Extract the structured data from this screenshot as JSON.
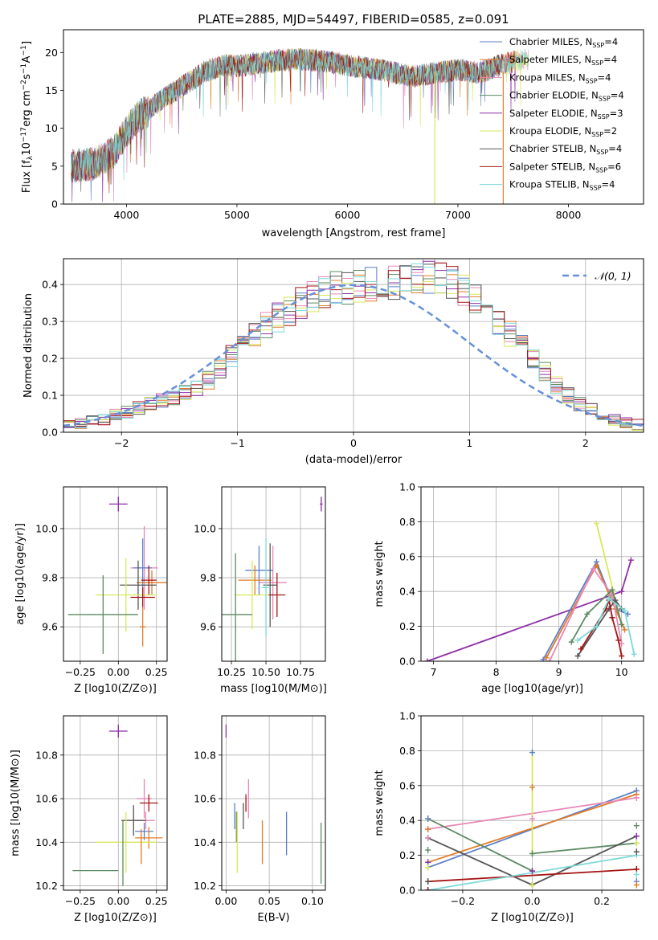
{
  "figure_title": "PLATE=2885, MJD=54497, FIBERID=0585, z=0.091",
  "colors": {
    "chabrier_miles": "#5b7fc9",
    "salpeter_miles": "#e07b28",
    "kroupa_miles": "#e887b8",
    "chabrier_elodie": "#5d8a63",
    "salpeter_elodie": "#8e2ea6",
    "kroupa_elodie": "#d9e85a",
    "chabrier_stelib": "#555555",
    "salpeter_stelib": "#a51515",
    "kroupa_stelib": "#7dd9d8",
    "gaussian": "#6690d8",
    "grid": "#b0b0b0"
  },
  "chart_data": [
    {
      "id": "spectrum",
      "type": "line",
      "title": "PLATE=2885, MJD=54497, FIBERID=0585, z=0.091",
      "xlabel": "wavelength [Angstrom, rest frame]",
      "ylabel": "Flux [f_λ 10^-17 erg cm^-2 s^-1 A^-1]",
      "xlim": [
        3430,
        8680
      ],
      "ylim": [
        0,
        23
      ],
      "xticks": [
        4000,
        5000,
        6000,
        7000,
        8000
      ],
      "yticks": [
        0,
        5,
        10,
        15,
        20
      ],
      "grid": false,
      "legend_position": "upper right",
      "series": [
        {
          "name": "Chabrier MILES, N_SSP=4",
          "color": "#5b7fc9"
        },
        {
          "name": "Salpeter MILES, N_SSP=4",
          "color": "#e07b28"
        },
        {
          "name": "Kroupa MILES, N_SSP=4",
          "color": "#e887b8"
        },
        {
          "name": "Chabrier ELODIE, N_SSP=4",
          "color": "#5d8a63"
        },
        {
          "name": "Salpeter ELODIE, N_SSP=3",
          "color": "#8e2ea6"
        },
        {
          "name": "Kroupa ELODIE, N_SSP=2",
          "color": "#d9e85a"
        },
        {
          "name": "Chabrier STELIB, N_SSP=4",
          "color": "#555555"
        },
        {
          "name": "Salpeter STELIB, N_SSP=6",
          "color": "#a51515"
        },
        {
          "name": "Kroupa STELIB, N_SSP=4",
          "color": "#7dd9d8"
        }
      ],
      "continuum": {
        "x": [
          3500,
          3700,
          3800,
          3900,
          4000,
          4100,
          4200,
          4300,
          4400,
          4500,
          4600,
          4700,
          4800,
          4900,
          5000,
          5200,
          5400,
          5600,
          5800,
          5900,
          6000,
          6200,
          6400,
          6600,
          6800,
          7000,
          7200,
          7400,
          7600,
          7800
        ],
        "y": [
          5.0,
          5.3,
          6.0,
          7.2,
          9.5,
          11.5,
          12.3,
          13.6,
          14.5,
          15.5,
          16.4,
          17.4,
          17.9,
          18.4,
          18.2,
          18.6,
          19.0,
          19.1,
          18.8,
          18.6,
          18.3,
          17.9,
          17.4,
          16.8,
          17.3,
          17.7,
          17.3,
          18.5,
          19.0,
          19.2
        ]
      },
      "dropouts": [
        {
          "x": 6790,
          "color": "#d9e85a"
        },
        {
          "x": 7410,
          "color": "#e07b28"
        }
      ]
    },
    {
      "id": "residuals",
      "type": "histogram",
      "xlabel": "(data-model)/error",
      "ylabel": "Normed distribution",
      "xlim": [
        -2.5,
        2.5
      ],
      "ylim": [
        0,
        0.47
      ],
      "xticks": [
        -2,
        -1,
        0,
        1,
        2
      ],
      "yticks": [
        0.0,
        0.1,
        0.2,
        0.3,
        0.4
      ],
      "grid": true,
      "legend_position": "upper right",
      "legend": [
        {
          "label": "𝒩(0, 1)",
          "color": "#6690d8",
          "dashed": true
        }
      ],
      "bins": {
        "start": -2.5,
        "width": 0.1
      },
      "base_values": [
        0.02,
        0.026,
        0.03,
        0.036,
        0.045,
        0.055,
        0.065,
        0.076,
        0.085,
        0.096,
        0.108,
        0.122,
        0.14,
        0.17,
        0.205,
        0.235,
        0.265,
        0.29,
        0.31,
        0.33,
        0.35,
        0.365,
        0.38,
        0.39,
        0.395,
        0.398,
        0.4,
        0.405,
        0.41,
        0.415,
        0.418,
        0.42,
        0.415,
        0.4,
        0.385,
        0.365,
        0.335,
        0.305,
        0.27,
        0.235,
        0.2,
        0.165,
        0.13,
        0.1,
        0.078,
        0.06,
        0.045,
        0.034,
        0.026,
        0.02
      ],
      "series_colors": [
        "#5b7fc9",
        "#e07b28",
        "#e887b8",
        "#5d8a63",
        "#8e2ea6",
        "#d9e85a",
        "#555555",
        "#a51515",
        "#7dd9d8"
      ]
    },
    {
      "id": "age_vs_Z",
      "type": "errorbar",
      "xlabel": "Z [log10(Z/Z⊙)]",
      "ylabel": "age [log10(age/yr)]",
      "xlim": [
        -0.36,
        0.32
      ],
      "ylim": [
        9.46,
        10.17
      ],
      "xticks": [
        -0.25,
        0.0,
        0.25
      ],
      "yticks": [
        9.6,
        9.8,
        10.0
      ],
      "grid": true,
      "points": [
        {
          "x": 0.0,
          "y": 10.1,
          "xerr": 0.06,
          "yerr": 0.03,
          "color": "#8e2ea6"
        },
        {
          "x": 0.17,
          "y": 9.84,
          "xerr": 0.09,
          "yerr": 0.17,
          "color": "#e887b8"
        },
        {
          "x": 0.16,
          "y": 9.84,
          "xerr": 0.06,
          "yerr": 0.12,
          "color": "#5b7fc9"
        },
        {
          "x": 0.22,
          "y": 9.78,
          "xerr": 0.1,
          "yerr": 0.05,
          "color": "#e07b28"
        },
        {
          "x": 0.2,
          "y": 9.79,
          "xerr": 0.05,
          "yerr": 0.06,
          "color": "#a51515"
        },
        {
          "x": 0.13,
          "y": 9.77,
          "xerr": 0.12,
          "yerr": 0.1,
          "color": "#555555"
        },
        {
          "x": 0.05,
          "y": 9.73,
          "xerr": 0.2,
          "yerr": 0.15,
          "color": "#d9e85a"
        },
        {
          "x": -0.1,
          "y": 9.65,
          "xerr": 0.23,
          "yerr": 0.16,
          "color": "#5d8a63"
        },
        {
          "x": 0.16,
          "y": 9.72,
          "xerr": 0.08,
          "yerr": 0.04,
          "color": "#a51515"
        },
        {
          "x": 0.16,
          "y": 9.6,
          "xerr": 0.02,
          "yerr": 0.08,
          "color": "#e07b28"
        }
      ]
    },
    {
      "id": "age_vs_mass",
      "type": "errorbar",
      "xlabel": "mass [log10(M/M⊙)]",
      "ylabel": "",
      "xlim": [
        10.18,
        10.93
      ],
      "ylim": [
        9.46,
        10.17
      ],
      "xticks": [
        10.25,
        10.5,
        10.75
      ],
      "yticks": [
        9.6,
        9.8,
        10.0
      ],
      "grid": true,
      "points": [
        {
          "x": 10.9,
          "y": 10.1,
          "xerr": 0.01,
          "yerr": 0.03,
          "color": "#8e2ea6"
        },
        {
          "x": 10.55,
          "y": 9.78,
          "xerr": 0.1,
          "yerr": 0.15,
          "color": "#e887b8"
        },
        {
          "x": 10.45,
          "y": 9.83,
          "xerr": 0.1,
          "yerr": 0.1,
          "color": "#5b7fc9"
        },
        {
          "x": 10.42,
          "y": 9.79,
          "xerr": 0.12,
          "yerr": 0.06,
          "color": "#e07b28"
        },
        {
          "x": 10.53,
          "y": 9.77,
          "xerr": 0.05,
          "yerr": 0.17,
          "color": "#555555"
        },
        {
          "x": 10.4,
          "y": 9.73,
          "xerr": 0.13,
          "yerr": 0.14,
          "color": "#d9e85a"
        },
        {
          "x": 10.28,
          "y": 9.65,
          "xerr": 0.12,
          "yerr": 0.25,
          "color": "#5d8a63"
        },
        {
          "x": 10.58,
          "y": 9.73,
          "xerr": 0.06,
          "yerr": 0.09,
          "color": "#a51515"
        },
        {
          "x": 10.5,
          "y": 9.76,
          "xerr": 0.03,
          "yerr": 0.2,
          "color": "#7dd9d8"
        }
      ]
    },
    {
      "id": "massweight_vs_age",
      "type": "line",
      "xlabel": "age [log10(age/yr)]",
      "ylabel": "mass weight",
      "xlim": [
        6.8,
        10.35
      ],
      "ylim": [
        0,
        1
      ],
      "xticks": [
        7,
        8,
        9,
        10
      ],
      "yticks": [
        0.0,
        0.2,
        0.4,
        0.6,
        0.8,
        1.0
      ],
      "grid": true,
      "series": [
        {
          "color": "#8e2ea6",
          "x": [
            6.9,
            10.0,
            10.15
          ],
          "y": [
            0.0,
            0.4,
            0.58
          ]
        },
        {
          "color": "#5b7fc9",
          "x": [
            8.75,
            9.6,
            9.9,
            10.1
          ],
          "y": [
            0.01,
            0.57,
            0.3,
            0.27
          ]
        },
        {
          "color": "#e07b28",
          "x": [
            8.8,
            9.6,
            9.9,
            10.05
          ],
          "y": [
            0.02,
            0.55,
            0.3,
            0.18
          ]
        },
        {
          "color": "#e887b8",
          "x": [
            8.85,
            9.55,
            9.85,
            10.0
          ],
          "y": [
            0.0,
            0.53,
            0.38,
            0.1
          ]
        },
        {
          "color": "#d9e85a",
          "x": [
            9.6,
            10.0
          ],
          "y": [
            0.79,
            0.21
          ]
        },
        {
          "color": "#5d8a63",
          "x": [
            9.2,
            9.45,
            9.85,
            10.0
          ],
          "y": [
            0.11,
            0.27,
            0.41,
            0.21
          ]
        },
        {
          "color": "#555555",
          "x": [
            9.3,
            9.8,
            9.9,
            10.0
          ],
          "y": [
            0.03,
            0.3,
            0.35,
            0.3
          ]
        },
        {
          "color": "#a51515",
          "x": [
            9.35,
            9.75,
            9.8,
            9.85,
            9.95,
            10.0
          ],
          "y": [
            0.07,
            0.3,
            0.35,
            0.25,
            0.12,
            0.03
          ]
        },
        {
          "color": "#7dd9d8",
          "x": [
            9.3,
            9.6,
            9.8,
            10.05,
            10.2
          ],
          "y": [
            0.12,
            0.2,
            0.36,
            0.29,
            0.04
          ]
        }
      ]
    },
    {
      "id": "mass_vs_Z",
      "type": "errorbar",
      "xlabel": "Z [log10(Z/Z⊙)]",
      "ylabel": "mass [log10(M/M⊙)]",
      "xlim": [
        -0.36,
        0.32
      ],
      "ylim": [
        10.18,
        10.98
      ],
      "xticks": [
        -0.25,
        0.0,
        0.25
      ],
      "yticks": [
        10.2,
        10.4,
        10.6,
        10.8
      ],
      "grid": true,
      "points": [
        {
          "x": 0.0,
          "y": 10.91,
          "xerr": 0.06,
          "yerr": 0.03,
          "color": "#8e2ea6"
        },
        {
          "x": 0.17,
          "y": 10.6,
          "xerr": 0.05,
          "yerr": 0.09,
          "color": "#e887b8"
        },
        {
          "x": 0.2,
          "y": 10.58,
          "xerr": 0.06,
          "yerr": 0.04,
          "color": "#a51515"
        },
        {
          "x": 0.18,
          "y": 10.5,
          "xerr": 0.06,
          "yerr": 0.04,
          "color": "#e887b8"
        },
        {
          "x": 0.17,
          "y": 10.45,
          "xerr": 0.06,
          "yerr": 0.04,
          "color": "#5b7fc9"
        },
        {
          "x": 0.2,
          "y": 10.42,
          "xerr": 0.09,
          "yerr": 0.05,
          "color": "#e07b28"
        },
        {
          "x": 0.1,
          "y": 10.5,
          "xerr": 0.08,
          "yerr": 0.07,
          "color": "#555555"
        },
        {
          "x": 0.05,
          "y": 10.4,
          "xerr": 0.2,
          "yerr": 0.14,
          "color": "#d9e85a"
        },
        {
          "x": -0.15,
          "y": 10.27,
          "xerr": 0.15,
          "yerr": 0.0,
          "color": "#5d8a63"
        },
        {
          "x": 0.03,
          "y": 10.35,
          "xerr": 0.0,
          "yerr": 0.15,
          "color": "#5d8a63"
        },
        {
          "x": 0.15,
          "y": 10.38,
          "xerr": 0.0,
          "yerr": 0.08,
          "color": "#e07b28"
        }
      ]
    },
    {
      "id": "mass_vs_ebv",
      "type": "errorbar",
      "xlabel": "E(B-V)",
      "ylabel": "",
      "xlim": [
        -0.005,
        0.115
      ],
      "ylim": [
        10.18,
        10.98
      ],
      "xticks": [
        0.0,
        0.05,
        0.1
      ],
      "yticks": [
        10.2,
        10.4,
        10.6,
        10.8
      ],
      "grid": true,
      "points": [
        {
          "x": 0.0,
          "y": 10.91,
          "xerr": 0.0,
          "yerr": 0.03,
          "color": "#8e2ea6"
        },
        {
          "x": 0.01,
          "y": 10.52,
          "xerr": 0.0,
          "yerr": 0.06,
          "color": "#5b7fc9"
        },
        {
          "x": 0.012,
          "y": 10.47,
          "xerr": 0.0,
          "yerr": 0.07,
          "color": "#5d8a63"
        },
        {
          "x": 0.013,
          "y": 10.4,
          "xerr": 0.0,
          "yerr": 0.14,
          "color": "#d9e85a"
        },
        {
          "x": 0.02,
          "y": 10.52,
          "xerr": 0.0,
          "yerr": 0.06,
          "color": "#555555"
        },
        {
          "x": 0.023,
          "y": 10.58,
          "xerr": 0.0,
          "yerr": 0.04,
          "color": "#a51515"
        },
        {
          "x": 0.026,
          "y": 10.6,
          "xerr": 0.0,
          "yerr": 0.09,
          "color": "#e887b8"
        },
        {
          "x": 0.042,
          "y": 10.4,
          "xerr": 0.0,
          "yerr": 0.1,
          "color": "#e07b28"
        },
        {
          "x": 0.07,
          "y": 10.44,
          "xerr": 0.0,
          "yerr": 0.1,
          "color": "#5b7fc9"
        },
        {
          "x": 0.11,
          "y": 10.35,
          "xerr": 0.0,
          "yerr": 0.14,
          "color": "#5d8a63"
        }
      ]
    },
    {
      "id": "massweight_vs_Z",
      "type": "line",
      "xlabel": "Z [log10(Z/Z⊙)]",
      "ylabel": "mass weight",
      "xlim": [
        -0.32,
        0.32
      ],
      "ylim": [
        0,
        1
      ],
      "xticks": [
        -0.2,
        0.0,
        0.2
      ],
      "yticks": [
        0.0,
        0.2,
        0.4,
        0.6,
        0.8,
        1.0
      ],
      "grid": true,
      "series": [
        {
          "color": "#5b7fc9",
          "x": [
            -0.3,
            0.3
          ],
          "y": [
            0.13,
            0.57
          ]
        },
        {
          "color": "#e07b28",
          "x": [
            -0.3,
            0.3
          ],
          "y": [
            0.16,
            0.55
          ]
        },
        {
          "color": "#e887b8",
          "x": [
            -0.3,
            0.3
          ],
          "y": [
            0.35,
            0.53
          ]
        },
        {
          "color": "#5d8a63",
          "x": [
            -0.3,
            0.0
          ],
          "y": [
            0.41,
            0.11
          ]
        },
        {
          "color": "#5d8a63",
          "x": [
            0.0,
            0.3
          ],
          "y": [
            0.21,
            0.27
          ]
        },
        {
          "color": "#555555",
          "x": [
            -0.3,
            0.0,
            0.3
          ],
          "y": [
            0.3,
            0.03,
            0.31
          ]
        },
        {
          "color": "#a51515",
          "x": [
            -0.3,
            0.3
          ],
          "y": [
            0.05,
            0.12
          ]
        },
        {
          "color": "#7dd9d8",
          "x": [
            -0.3,
            0.3
          ],
          "y": [
            0.0,
            0.2
          ]
        },
        {
          "color": "#d9e85a",
          "x": [
            0.0,
            0.0
          ],
          "y": [
            0.21,
            0.79
          ]
        }
      ],
      "markers": [
        {
          "x": -0.3,
          "y": [
            0.41,
            0.35,
            0.3,
            0.23,
            0.16,
            0.13,
            0.05,
            0.0
          ]
        },
        {
          "x": 0.0,
          "y": [
            0.79,
            0.59,
            0.41,
            0.21,
            0.11,
            0.03
          ]
        },
        {
          "x": 0.3,
          "y": [
            0.57,
            0.55,
            0.53,
            0.37,
            0.31,
            0.27,
            0.22,
            0.12,
            0.09,
            0.05,
            0.03
          ]
        }
      ]
    }
  ]
}
